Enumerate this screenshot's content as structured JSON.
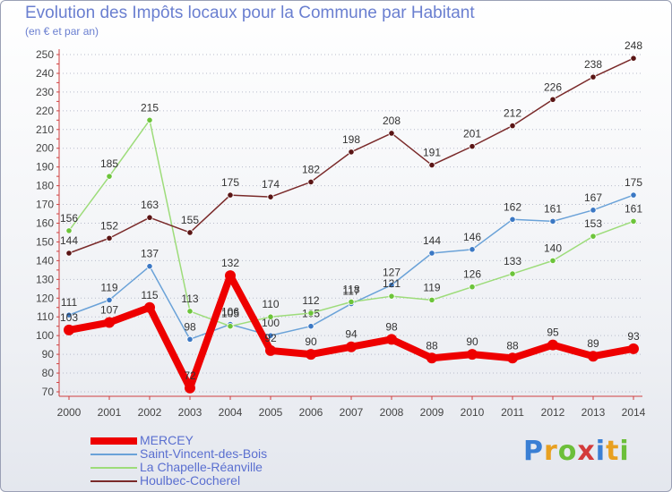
{
  "header": {
    "title": "Evolution des Impôts locaux pour la Commune par Habitant",
    "subtitle": "(en € et par an)"
  },
  "logo": {
    "text": "Proxiti",
    "letters": [
      {
        "ch": "P",
        "color": "#3a7fd4"
      },
      {
        "ch": "r",
        "color": "#e8a020"
      },
      {
        "ch": "o",
        "color": "#6cbf3a"
      },
      {
        "ch": "x",
        "color": "#d33b3b"
      },
      {
        "ch": "i",
        "color": "#3a7fd4"
      },
      {
        "ch": "t",
        "color": "#e8a020"
      },
      {
        "ch": "i",
        "color": "#6cbf3a"
      }
    ]
  },
  "chart_data": {
    "type": "line",
    "title": "Evolution des Impôts locaux pour la Commune par Habitant",
    "subtitle": "(en € et par an)",
    "x": [
      2000,
      2001,
      2002,
      2003,
      2004,
      2005,
      2006,
      2007,
      2008,
      2009,
      2010,
      2011,
      2012,
      2013,
      2014
    ],
    "ylim": [
      70,
      250
    ],
    "ytick_step": 10,
    "grid": "dotted-horizontal",
    "legend_position": "bottom-left",
    "series": [
      {
        "name": "MERCEY",
        "color": "#ee0000",
        "marker": "#ee0000",
        "width": "thick",
        "values": [
          103,
          107,
          115,
          72,
          132,
          92,
          90,
          94,
          98,
          88,
          90,
          88,
          95,
          89,
          93
        ]
      },
      {
        "name": "Saint-Vincent-des-Bois",
        "color": "#6aa2d8",
        "marker": "#3b78c4",
        "width": "thin",
        "values": [
          111,
          119,
          137,
          98,
          106,
          100,
          105,
          117,
          127,
          144,
          146,
          162,
          161,
          167,
          175
        ]
      },
      {
        "name": "La Chapelle-Réanville",
        "color": "#9ddc7a",
        "marker": "#6cc43a",
        "width": "thin",
        "values": [
          156,
          185,
          215,
          113,
          105,
          110,
          112,
          118,
          121,
          119,
          126,
          133,
          140,
          153,
          161
        ]
      },
      {
        "name": "Houlbec-Cocherel",
        "color": "#7a2a2a",
        "marker": "#5a1515",
        "width": "thin",
        "values": [
          144,
          152,
          163,
          155,
          175,
          174,
          182,
          198,
          208,
          191,
          201,
          212,
          226,
          238,
          248
        ]
      }
    ]
  }
}
